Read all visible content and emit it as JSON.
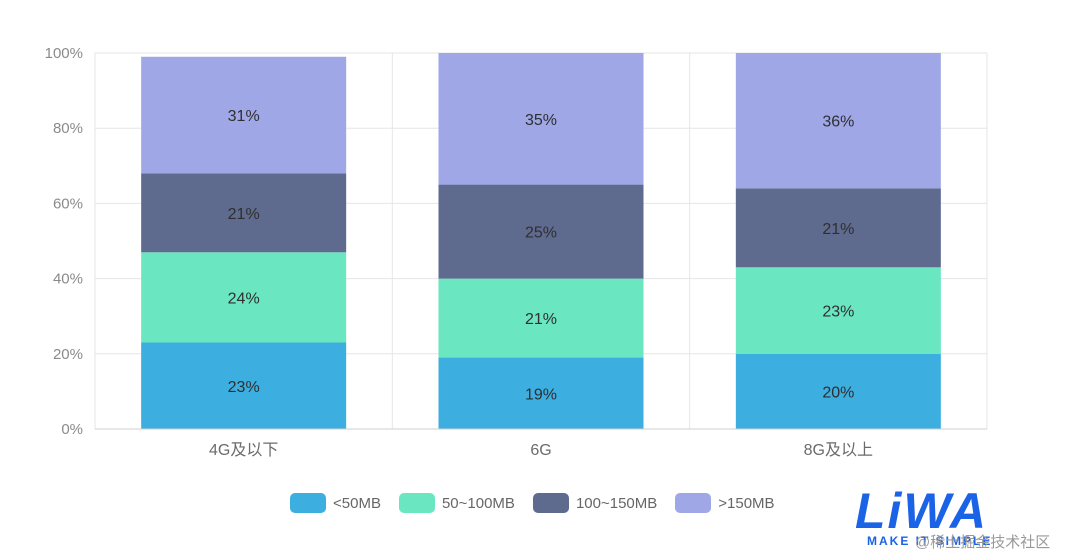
{
  "chart_data": {
    "type": "bar",
    "stacked": true,
    "categories": [
      "4G及以下",
      "6G",
      "8G及以上"
    ],
    "series": [
      {
        "name": "<50MB",
        "color": "#3daee0",
        "values": [
          23,
          19,
          20
        ]
      },
      {
        "name": "50~100MB",
        "color": "#6ae6c0",
        "values": [
          24,
          21,
          23
        ]
      },
      {
        "name": "100~150MB",
        "color": "#5f6a8f",
        "values": [
          21,
          25,
          21
        ]
      },
      {
        "name": ">150MB",
        "color": "#9fa7e6",
        "values": [
          31,
          35,
          36
        ]
      }
    ],
    "ylim": [
      0,
      100
    ],
    "yticks": [
      "0%",
      "20%",
      "40%",
      "60%",
      "80%",
      "100%"
    ],
    "value_suffix": "%",
    "grid": true,
    "legend_position": "bottom"
  },
  "logo": {
    "word": "LiWA",
    "tagline": "MAKE IT SIMPLE",
    "watermark": "@稀土掘金技术社区"
  }
}
